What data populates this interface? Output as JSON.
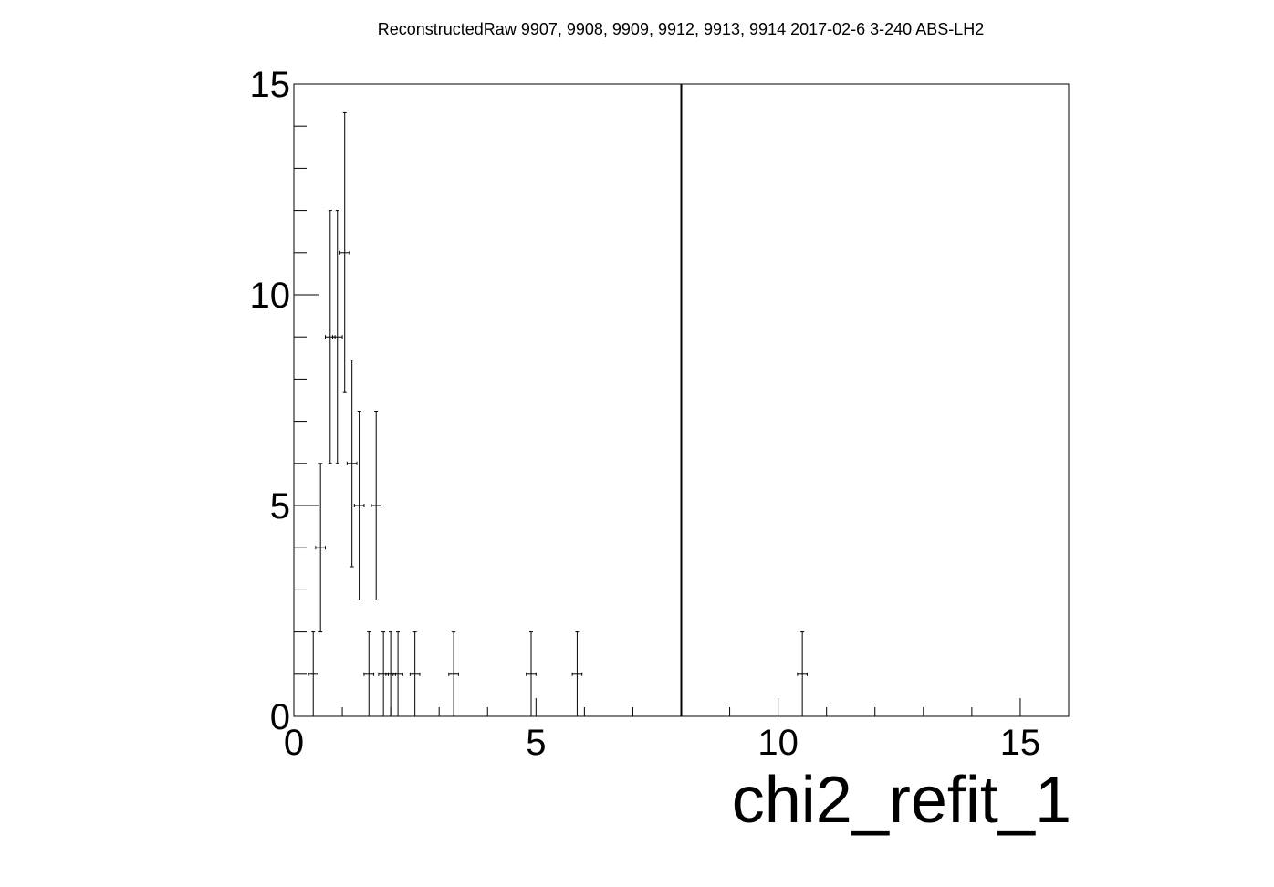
{
  "chart_data": {
    "type": "scatter",
    "title": "ReconstructedRaw 9907, 9908, 9909, 9912, 9913, 9914 2017-02-6 3-240 ABS-LH2",
    "xlabel": "chi2_refit_1",
    "ylabel": "",
    "xlim": [
      0,
      16
    ],
    "ylim": [
      0,
      15
    ],
    "x_ticks": [
      0,
      5,
      10,
      15
    ],
    "y_ticks": [
      0,
      5,
      10,
      15
    ],
    "grid": false,
    "cut_line_x": 8,
    "bin_half_width": 0.1,
    "points": [
      {
        "x": 0.4,
        "y": 1,
        "err": 1
      },
      {
        "x": 0.55,
        "y": 4,
        "err": 2
      },
      {
        "x": 0.75,
        "y": 9,
        "err": 3
      },
      {
        "x": 0.9,
        "y": 9,
        "err": 3
      },
      {
        "x": 1.05,
        "y": 11,
        "err": 3.32
      },
      {
        "x": 1.2,
        "y": 6,
        "err": 2.45
      },
      {
        "x": 1.35,
        "y": 5,
        "err": 2.24
      },
      {
        "x": 1.55,
        "y": 1,
        "err": 1
      },
      {
        "x": 1.7,
        "y": 5,
        "err": 2.24
      },
      {
        "x": 1.85,
        "y": 1,
        "err": 1
      },
      {
        "x": 2.0,
        "y": 1,
        "err": 1
      },
      {
        "x": 2.15,
        "y": 1,
        "err": 1
      },
      {
        "x": 2.5,
        "y": 1,
        "err": 1
      },
      {
        "x": 3.3,
        "y": 1,
        "err": 1
      },
      {
        "x": 4.9,
        "y": 1,
        "err": 1
      },
      {
        "x": 5.85,
        "y": 1,
        "err": 1
      },
      {
        "x": 10.5,
        "y": 1,
        "err": 1
      }
    ]
  }
}
